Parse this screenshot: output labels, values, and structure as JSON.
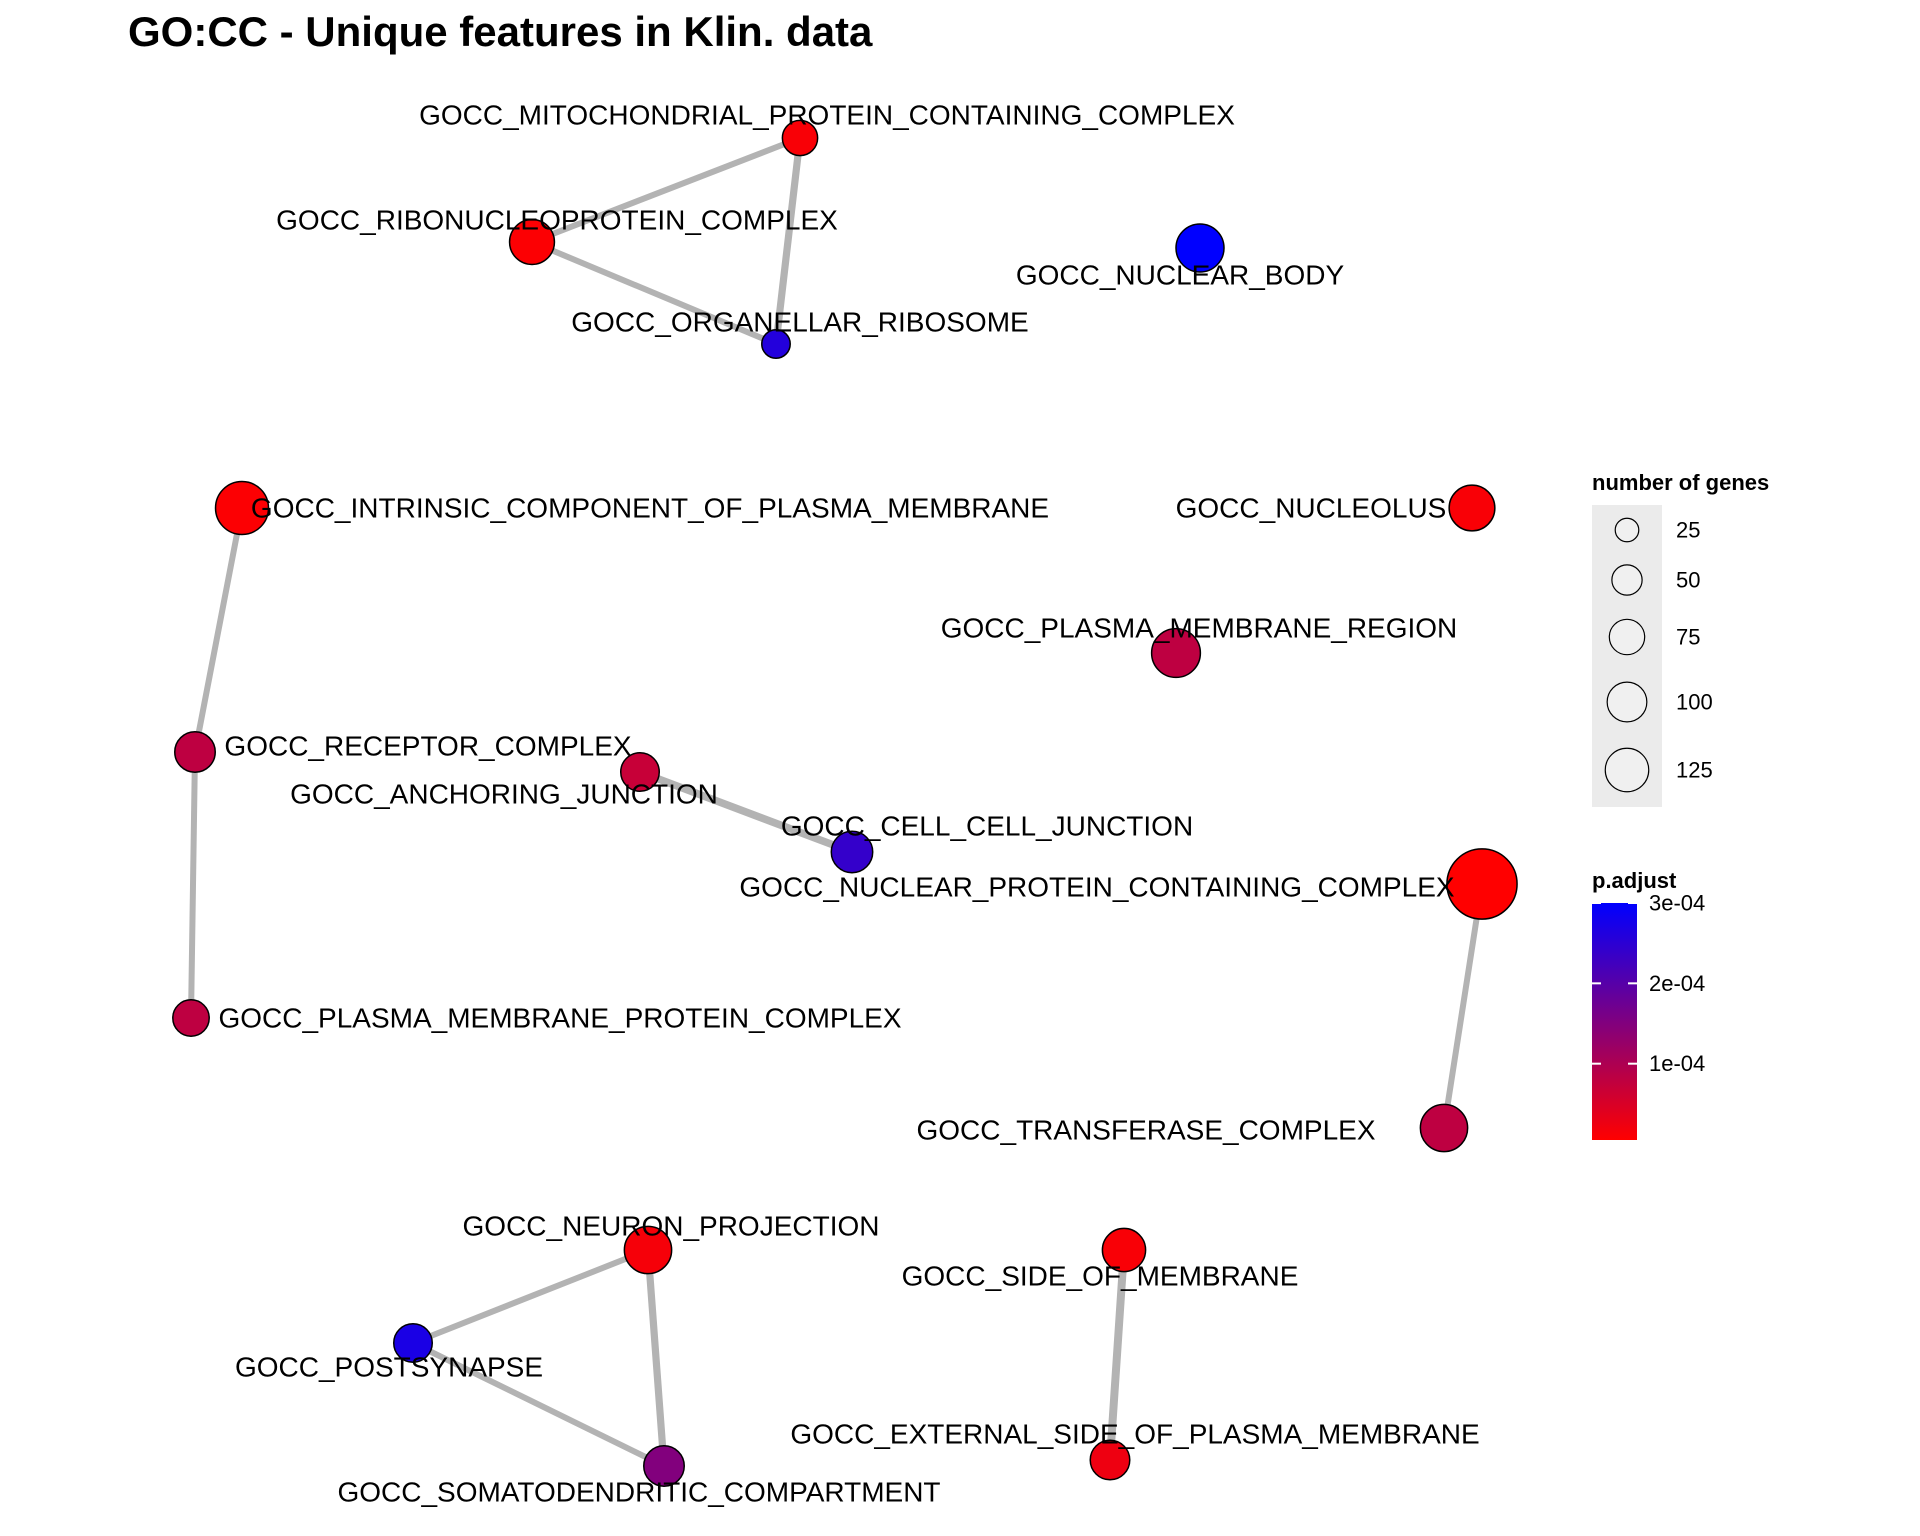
{
  "title": "GO:CC - Unique features in Klin. data",
  "colors": {
    "low_padjust": "#ff0000",
    "high_padjust": "#0000ff",
    "edge": "#b3b3b3",
    "legend_bg": "#ebebeb"
  },
  "nodes": [
    {
      "id": "mito",
      "label": "GOCC_MITOCHONDRIAL_PROTEIN_CONTAINING_COMPLEX",
      "genes": 20,
      "padjust": 1.2e-05
    },
    {
      "id": "ribo",
      "label": "GOCC_RIBONUCLEOPROTEIN_COMPLEX",
      "genes": 40,
      "padjust": 8e-06
    },
    {
      "id": "organ",
      "label": "GOCC_ORGANELLAR_RIBOSOME",
      "genes": 10,
      "padjust": 0.00026
    },
    {
      "id": "nucbody",
      "label": "GOCC_NUCLEAR_BODY",
      "genes": 48,
      "padjust": 0.0003
    },
    {
      "id": "intrinsic",
      "label": "GOCC_INTRINSIC_COMPONENT_OF_PLASMA_MEMBRANE",
      "genes": 62,
      "padjust": 8e-06
    },
    {
      "id": "nucleolus",
      "label": "GOCC_NUCLEOLUS",
      "genes": 42,
      "padjust": 1.2e-05
    },
    {
      "id": "pmregion",
      "label": "GOCC_PLASMA_MEMBRANE_REGION",
      "genes": 50,
      "padjust": 8e-05
    },
    {
      "id": "receptor",
      "label": "GOCC_RECEPTOR_COMPLEX",
      "genes": 30,
      "padjust": 8e-05
    },
    {
      "id": "anchoring",
      "label": "GOCC_ANCHORING_JUNCTION",
      "genes": 26,
      "padjust": 7e-05
    },
    {
      "id": "cellcell",
      "label": "GOCC_CELL_CELL_JUNCTION",
      "genes": 32,
      "padjust": 0.00024
    },
    {
      "id": "nuclear",
      "label": "GOCC_NUCLEAR_PROTEIN_CONTAINING_COMPLEX",
      "genes": 125,
      "padjust": 5e-06
    },
    {
      "id": "pmprotein",
      "label": "GOCC_PLASMA_MEMBRANE_PROTEIN_COMPLEX",
      "genes": 22,
      "padjust": 8e-05
    },
    {
      "id": "transferase",
      "label": "GOCC_TRANSFERASE_COMPLEX",
      "genes": 46,
      "padjust": 8e-05
    },
    {
      "id": "neuron",
      "label": "GOCC_NEURON_PROJECTION",
      "genes": 46,
      "padjust": 1.5e-05
    },
    {
      "id": "side",
      "label": "GOCC_SIDE_OF_MEMBRANE",
      "genes": 36,
      "padjust": 1.2e-05
    },
    {
      "id": "postsyn",
      "label": "GOCC_POSTSYNAPSE",
      "genes": 26,
      "padjust": 0.00027
    },
    {
      "id": "external",
      "label": "GOCC_EXTERNAL_SIDE_OF_PLASMA_MEMBRANE",
      "genes": 28,
      "padjust": 2.5e-05
    },
    {
      "id": "somato",
      "label": "GOCC_SOMATODENDRITIC_COMPARTMENT",
      "genes": 30,
      "padjust": 0.00015
    }
  ],
  "edges": [
    {
      "source": "mito",
      "target": "ribo",
      "weight": 0.5
    },
    {
      "source": "mito",
      "target": "organ",
      "weight": 0.8
    },
    {
      "source": "ribo",
      "target": "organ",
      "weight": 0.5
    },
    {
      "source": "intrinsic",
      "target": "receptor",
      "weight": 0.5
    },
    {
      "source": "receptor",
      "target": "pmprotein",
      "weight": 0.5
    },
    {
      "source": "anchoring",
      "target": "cellcell",
      "weight": 0.9
    },
    {
      "source": "nuclear",
      "target": "transferase",
      "weight": 0.5
    },
    {
      "source": "neuron",
      "target": "postsyn",
      "weight": 0.5
    },
    {
      "source": "neuron",
      "target": "somato",
      "weight": 0.8
    },
    {
      "source": "postsyn",
      "target": "somato",
      "weight": 0.5
    },
    {
      "source": "side",
      "target": "external",
      "weight": 1.0
    }
  ],
  "legend": {
    "size_title": "number of genes",
    "size_breaks": [
      25,
      50,
      75,
      100,
      125
    ],
    "color_title": "p.adjust",
    "color_breaks": [
      0.0001,
      0.0002,
      0.0003
    ],
    "color_break_labels": [
      "1e-04",
      "2e-04",
      "3e-04"
    ],
    "color_limits": [
      5e-06,
      0.0003
    ]
  }
}
